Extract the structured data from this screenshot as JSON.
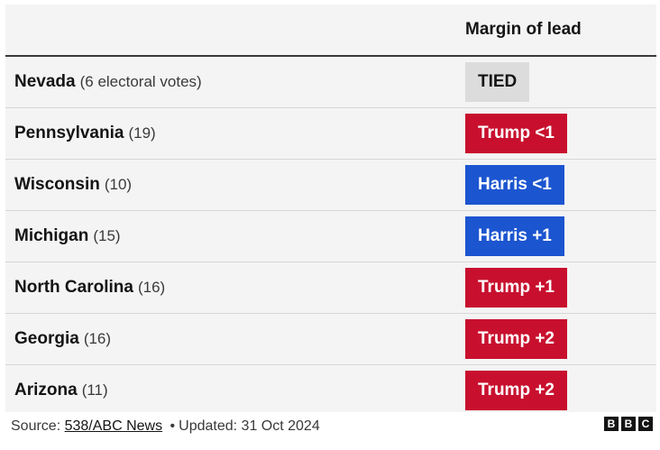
{
  "table": {
    "header_margin": "Margin of lead",
    "rows": [
      {
        "state": "Nevada",
        "votes": "(6 electoral votes)",
        "lead": "TIED",
        "party": "tied"
      },
      {
        "state": "Pennsylvania",
        "votes": "(19)",
        "lead": "Trump <1",
        "party": "trump"
      },
      {
        "state": "Wisconsin",
        "votes": "(10)",
        "lead": "Harris <1",
        "party": "harris"
      },
      {
        "state": "Michigan",
        "votes": "(15)",
        "lead": "Harris +1",
        "party": "harris"
      },
      {
        "state": "North Carolina",
        "votes": "(16)",
        "lead": "Trump +1",
        "party": "trump"
      },
      {
        "state": "Georgia",
        "votes": "(16)",
        "lead": "Trump +2",
        "party": "trump"
      },
      {
        "state": "Arizona",
        "votes": "(11)",
        "lead": "Trump +2",
        "party": "trump"
      }
    ]
  },
  "colors": {
    "trump": "#c8102e",
    "harris": "#1b55d0",
    "tied": "#dcdcdc"
  },
  "footer": {
    "source_prefix": "Source: ",
    "source_link": "538/ABC News",
    "separator": "•",
    "updated": "Updated: 31 Oct 2024",
    "logo": [
      "B",
      "B",
      "C"
    ]
  }
}
